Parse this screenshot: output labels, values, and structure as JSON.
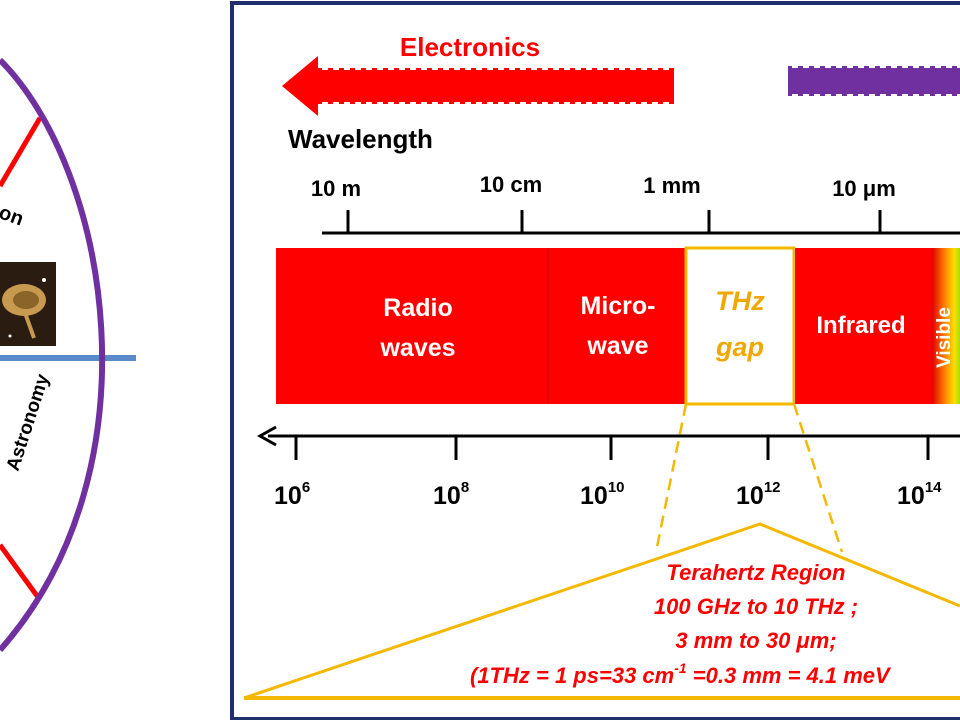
{
  "left_panel": {
    "partial_label_top": "on",
    "partial_label_bottom": "Astronomy",
    "icon": "satellite-dish-photo"
  },
  "main_panel": {
    "electronics_label": "Electronics",
    "wavelength_label": "Wavelength",
    "wavelength_ticks": [
      "10 m",
      "10 cm",
      "1 mm",
      "10 μm"
    ],
    "bands": {
      "radio_line1": "Radio",
      "radio_line2": "waves",
      "micro_line1": "Micro-",
      "micro_line2": "wave",
      "thz_line1": "THz",
      "thz_line2": "gap",
      "infrared": "Infrared",
      "visible": "Visible"
    },
    "frequency_ticks": [
      {
        "base": "10",
        "exp": "6"
      },
      {
        "base": "10",
        "exp": "8"
      },
      {
        "base": "10",
        "exp": "10"
      },
      {
        "base": "10",
        "exp": "12"
      },
      {
        "base": "10",
        "exp": "14"
      }
    ],
    "terahertz_box": {
      "line1": "Terahertz Region",
      "line2": "100 GHz to 10 THz ;",
      "line3": "3 mm to 30 μm;",
      "line4_a": "(1THz = 1 ps=33 cm",
      "line4_sup": "-1",
      "line4_b": " =0.3 mm =  4.1 meV"
    }
  },
  "colors": {
    "red": "#ff0000",
    "purple": "#7030a0",
    "navy": "#1f2f6b",
    "gold": "#f5b800",
    "thz_text": "#f0a800",
    "blue_divider": "#5b8ac8"
  }
}
